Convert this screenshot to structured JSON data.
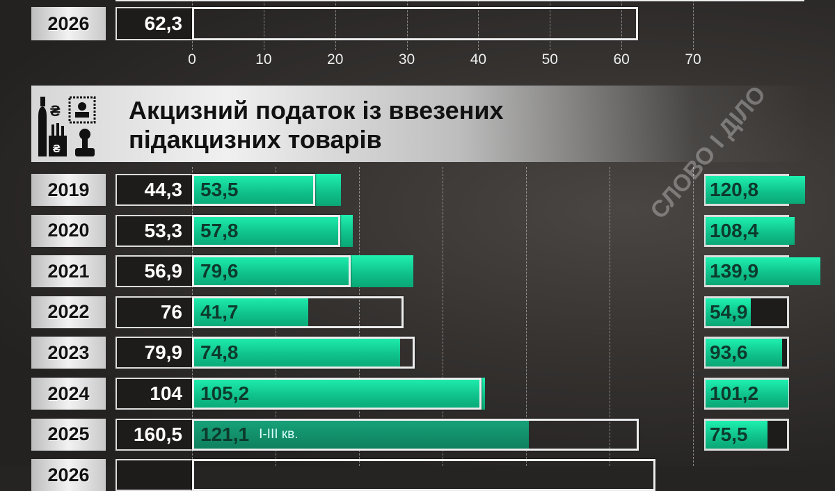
{
  "chart_data": [
    {
      "type": "bar",
      "orientation": "horizontal",
      "categories": [
        "2026"
      ],
      "series": [
        {
          "values": [
            62.3
          ],
          "style": "outline"
        }
      ],
      "xlim": [
        0,
        70
      ],
      "xticks": [
        "0",
        "10",
        "20",
        "30",
        "40",
        "50",
        "60",
        "70"
      ],
      "grid": true
    },
    {
      "type": "bar",
      "orientation": "horizontal",
      "title": "Акцизний податок із ввезених підакцизних товарів",
      "categories": [
        "2019",
        "2020",
        "2021",
        "2022",
        "2023",
        "2024",
        "2025",
        "2026"
      ],
      "plan": [
        44.3,
        53.3,
        56.9,
        76,
        79.9,
        104,
        160.5,
        166.5
      ],
      "plan_labels": [
        "44,3",
        "53,3",
        "56,9",
        "76",
        "79,9",
        "104",
        "160,5",
        ""
      ],
      "actual": [
        53.5,
        57.8,
        79.6,
        41.7,
        74.8,
        105.2,
        121.1,
        null
      ],
      "actual_labels": [
        "53,5",
        "57,8",
        "79,6",
        "41,7",
        "74,8",
        "105,2",
        "121,1",
        ""
      ],
      "actual_notes": [
        "",
        "",
        "",
        "",
        "",
        "",
        "I-III кв.",
        ""
      ],
      "percent": [
        120.8,
        108.4,
        139.9,
        54.9,
        93.6,
        101.2,
        75.5,
        null
      ],
      "percent_labels": [
        "120,8",
        "108,4",
        "139,9",
        "54,9",
        "93,6",
        "101,2",
        "75,5",
        ""
      ],
      "xlim": [
        0,
        180
      ],
      "grid": true
    }
  ],
  "watermark": "СЛОВО І ДІЛО",
  "colors": {
    "actual": "#12d69a",
    "plan_outline": "#eeeeee",
    "background": "#2a2827"
  }
}
